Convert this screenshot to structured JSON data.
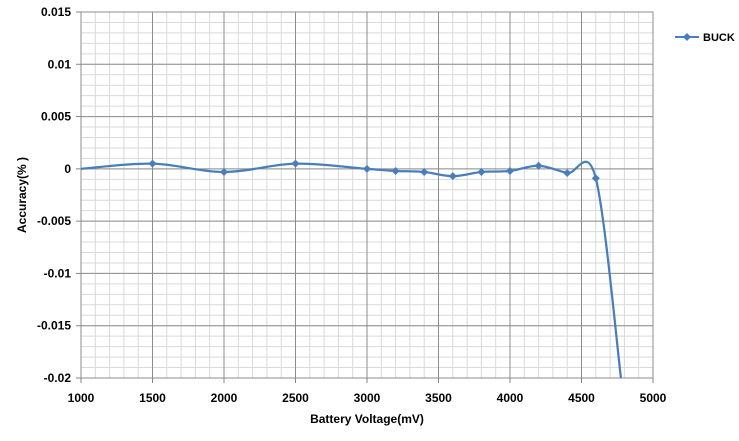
{
  "chart_data": {
    "type": "line",
    "title": "",
    "xlabel": "Battery Voltage(mV)",
    "ylabel": "Accuracy(% )",
    "xlim": [
      1000,
      5000
    ],
    "ylim": [
      -0.02,
      0.015
    ],
    "x_ticks": [
      1000,
      1500,
      2000,
      2500,
      3000,
      3500,
      4000,
      4500,
      5000
    ],
    "x_tick_labels": [
      "1000",
      "1500",
      "2000",
      "2500",
      "3000",
      "3500",
      "4000",
      "4500",
      "5000"
    ],
    "y_ticks": [
      0.015,
      0.01,
      0.005,
      0,
      -0.005,
      -0.01,
      -0.015,
      -0.02
    ],
    "y_tick_labels": [
      "0.015",
      "0.01",
      "0.005",
      "0",
      "-0.005",
      "-0.01",
      "-0.015",
      "-0.02"
    ],
    "x_minor_step": 100,
    "y_minor_step": 0.001,
    "grid": true,
    "legend_position": "top-right",
    "smoothed": true,
    "series": [
      {
        "name": "BUCK",
        "color": "#4a7ebb",
        "marker": "diamond",
        "points": [
          {
            "x": 1000,
            "y": 0.0,
            "marker": false
          },
          {
            "x": 1500,
            "y": 0.0005,
            "marker": true
          },
          {
            "x": 2000,
            "y": -0.0003,
            "marker": true
          },
          {
            "x": 2500,
            "y": 0.0005,
            "marker": true
          },
          {
            "x": 3000,
            "y": 0.0,
            "marker": true
          },
          {
            "x": 3200,
            "y": -0.0002,
            "marker": true
          },
          {
            "x": 3400,
            "y": -0.0003,
            "marker": true
          },
          {
            "x": 3600,
            "y": -0.0007,
            "marker": true
          },
          {
            "x": 3800,
            "y": -0.0003,
            "marker": true
          },
          {
            "x": 4000,
            "y": -0.0002,
            "marker": true
          },
          {
            "x": 4200,
            "y": 0.0003,
            "marker": true
          },
          {
            "x": 4400,
            "y": -0.0004,
            "marker": true
          },
          {
            "x": 4600,
            "y": -0.0009,
            "marker": true
          },
          {
            "x": 4780,
            "y": -0.0205,
            "marker": false
          }
        ]
      }
    ]
  }
}
